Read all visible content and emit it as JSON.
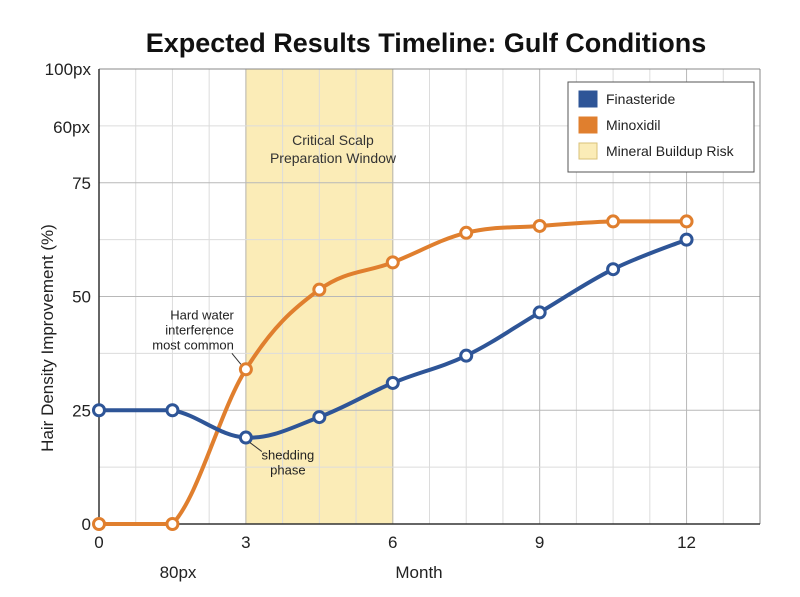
{
  "chart_data": {
    "type": "line",
    "title": "Expected Results Timeline: Gulf Conditions",
    "xlabel": "Month",
    "ylabel": "Hair Density Improvement (%)",
    "xlim": [
      0,
      13.5
    ],
    "ylim": [
      0,
      100
    ],
    "x_ticks": [
      {
        "value": 0,
        "label": "0"
      },
      {
        "value": 3,
        "label": "3"
      },
      {
        "value": 6,
        "label": "6"
      },
      {
        "value": 9,
        "label": "9"
      },
      {
        "value": 12,
        "label": "12"
      }
    ],
    "x_extra_label": "80px",
    "y_ticks": [
      {
        "value": 0,
        "label": "0"
      },
      {
        "value": 25,
        "label": "25"
      },
      {
        "value": 50,
        "label": "50"
      },
      {
        "value": 75,
        "label": "75"
      },
      {
        "value": 100,
        "label": "100px"
      }
    ],
    "y_extra_label": "60px",
    "grid": true,
    "legend_position": "top-right",
    "series": [
      {
        "name": "Finasteride",
        "color": "#2e5597",
        "x": [
          0,
          1.5,
          3,
          4.5,
          6,
          7.5,
          9,
          10.5,
          12
        ],
        "y": [
          25,
          25,
          19,
          23.5,
          31,
          37,
          46.5,
          56,
          62.5
        ]
      },
      {
        "name": "Minoxidil",
        "color": "#e07f2e",
        "x": [
          0,
          1.5,
          3,
          4.5,
          6,
          7.5,
          9,
          10.5,
          12
        ],
        "y": [
          0,
          0,
          34,
          51.5,
          57.5,
          64,
          65.5,
          66.5,
          66.5
        ]
      }
    ],
    "band": {
      "name": "Mineral Buildup Risk",
      "x_start": 3,
      "x_end": 6,
      "color": "#fbecb7",
      "label_lines": [
        "Critical Scalp",
        "Preparation Window"
      ]
    },
    "annotations": [
      {
        "lines": [
          "Hard water",
          "interference",
          "most common"
        ],
        "x": 3,
        "y": 34,
        "series": "Minoxidil"
      },
      {
        "lines": [
          "shedding",
          "phase"
        ],
        "x": 3,
        "y": 19,
        "series": "Finasteride"
      }
    ]
  }
}
